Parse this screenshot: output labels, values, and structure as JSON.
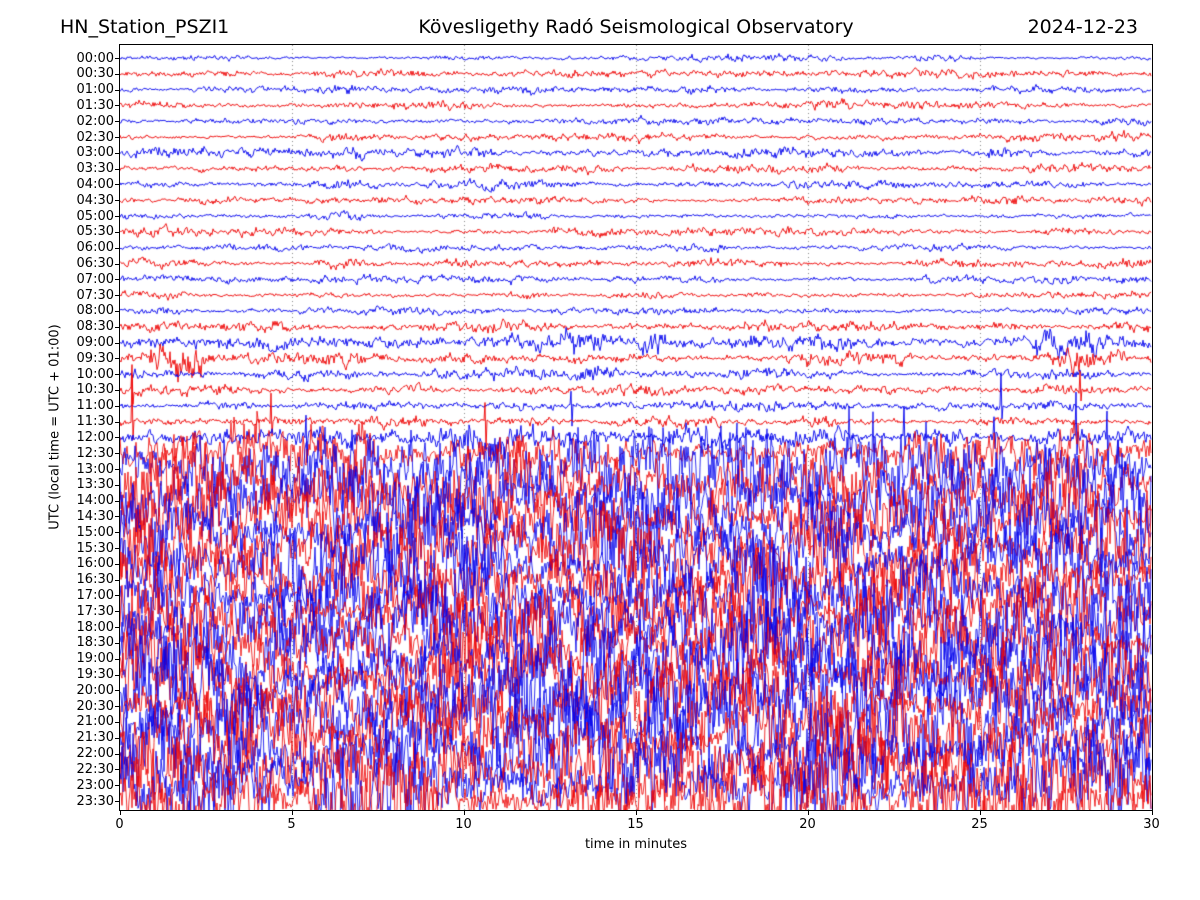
{
  "chart_data": {
    "type": "line",
    "variant": "helicorder-day-plot",
    "title_left": "HN_Station_PSZI1",
    "title_center": "Kövesligethy Radó Seismological Observatory",
    "title_right": "2024-12-23",
    "xlabel": "time in minutes",
    "ylabel": "UTC (local time = UTC + 01:00)",
    "xlim": [
      0,
      30
    ],
    "xticks": [
      0,
      5,
      10,
      15,
      20,
      25,
      30
    ],
    "minutes_per_row": 30,
    "grid": {
      "vertical_minutes": [
        5,
        10,
        15,
        20,
        25
      ],
      "style": "dotted",
      "color": "#888888"
    },
    "colors": {
      "blue": "#0000ee",
      "red": "#ee0000"
    },
    "background": "#ffffff",
    "legend": "none",
    "rows": [
      {
        "t": "00:00",
        "c": "blue",
        "amp": 2.2,
        "seed": 11
      },
      {
        "t": "00:30",
        "c": "red",
        "amp": 2.5,
        "seed": 28
      },
      {
        "t": "01:00",
        "c": "blue",
        "amp": 2.7,
        "seed": 45
      },
      {
        "t": "01:30",
        "c": "red",
        "amp": 2.7,
        "seed": 62
      },
      {
        "t": "02:00",
        "c": "blue",
        "amp": 2.4,
        "seed": 79
      },
      {
        "t": "02:30",
        "c": "red",
        "amp": 3.0,
        "seed": 96
      },
      {
        "t": "03:00",
        "c": "blue",
        "amp": 3.8,
        "seed": 113
      },
      {
        "t": "03:30",
        "c": "red",
        "amp": 3.0,
        "seed": 130
      },
      {
        "t": "04:00",
        "c": "blue",
        "amp": 3.2,
        "seed": 147
      },
      {
        "t": "04:30",
        "c": "red",
        "amp": 2.7,
        "seed": 164
      },
      {
        "t": "05:00",
        "c": "blue",
        "amp": 2.7,
        "seed": 181
      },
      {
        "t": "05:30",
        "c": "red",
        "amp": 2.9,
        "seed": 198
      },
      {
        "t": "06:00",
        "c": "blue",
        "amp": 2.5,
        "seed": 215
      },
      {
        "t": "06:30",
        "c": "red",
        "amp": 3.1,
        "seed": 232
      },
      {
        "t": "07:00",
        "c": "blue",
        "amp": 2.9,
        "seed": 249
      },
      {
        "t": "07:30",
        "c": "red",
        "amp": 2.7,
        "seed": 266
      },
      {
        "t": "08:00",
        "c": "blue",
        "amp": 2.5,
        "seed": 283
      },
      {
        "t": "08:30",
        "c": "red",
        "amp": 3.6,
        "seed": 300
      },
      {
        "t": "09:00",
        "c": "blue",
        "amp": 4.8,
        "seed": 317,
        "b": [
          [
            12.8,
            14.2,
            2.4
          ],
          [
            15.2,
            15.8,
            2.0
          ],
          [
            26.5,
            28.5,
            1.8
          ]
        ]
      },
      {
        "t": "09:30",
        "c": "red",
        "amp": 4.8,
        "seed": 334,
        "b": [
          [
            0.9,
            2.6,
            3.2
          ],
          [
            27.3,
            29.3,
            2.4
          ]
        ]
      },
      {
        "t": "10:00",
        "c": "blue",
        "amp": 4.4,
        "seed": 351
      },
      {
        "t": "10:30",
        "c": "red",
        "amp": 3.6,
        "seed": 368,
        "s": [
          [
            0.35,
            24,
            10
          ],
          [
            27.9,
            18,
            8
          ]
        ]
      },
      {
        "t": "11:00",
        "c": "blue",
        "amp": 3.5,
        "seed": 385,
        "s": [
          [
            13.1,
            14,
            20
          ],
          [
            25.6,
            34,
            12
          ]
        ]
      },
      {
        "t": "11:30",
        "c": "red",
        "amp": 3.5,
        "seed": 402,
        "s": [
          [
            0.35,
            46,
            20
          ],
          [
            4.4,
            26,
            12
          ],
          [
            10.6,
            20,
            30
          ]
        ]
      },
      {
        "t": "12:00",
        "c": "blue",
        "amp": 7.0,
        "seed": 419,
        "b": [
          [
            9.8,
            11.2,
            1.8
          ]
        ],
        "s": [
          [
            5.4,
            16,
            26
          ],
          [
            22.8,
            30,
            14
          ],
          [
            25.4,
            22,
            12
          ],
          [
            27.8,
            44,
            20
          ],
          [
            28.7,
            26,
            40
          ]
        ]
      },
      {
        "t": "12:30",
        "c": "red",
        "amp": 20,
        "seed": 436
      },
      {
        "t": "13:00",
        "c": "blue",
        "amp": 26,
        "seed": 453
      },
      {
        "t": "13:30",
        "c": "red",
        "amp": 28,
        "seed": 470
      },
      {
        "t": "14:00",
        "c": "blue",
        "amp": 30,
        "seed": 487
      },
      {
        "t": "14:30",
        "c": "red",
        "amp": 24,
        "seed": 504
      },
      {
        "t": "15:00",
        "c": "blue",
        "amp": 30,
        "seed": 521
      },
      {
        "t": "15:30",
        "c": "red",
        "amp": 27,
        "seed": 538
      },
      {
        "t": "16:00",
        "c": "blue",
        "amp": 30,
        "seed": 555
      },
      {
        "t": "16:30",
        "c": "red",
        "amp": 28,
        "seed": 572
      },
      {
        "t": "17:00",
        "c": "blue",
        "amp": 31,
        "seed": 589
      },
      {
        "t": "17:30",
        "c": "red",
        "amp": 29,
        "seed": 606
      },
      {
        "t": "18:00",
        "c": "blue",
        "amp": 32,
        "seed": 623
      },
      {
        "t": "18:30",
        "c": "red",
        "amp": 30,
        "seed": 640
      },
      {
        "t": "19:00",
        "c": "blue",
        "amp": 32,
        "seed": 657
      },
      {
        "t": "19:30",
        "c": "red",
        "amp": 29,
        "seed": 674
      },
      {
        "t": "20:00",
        "c": "blue",
        "amp": 32,
        "seed": 691
      },
      {
        "t": "20:30",
        "c": "red",
        "amp": 30,
        "seed": 708
      },
      {
        "t": "21:00",
        "c": "blue",
        "amp": 33,
        "seed": 725
      },
      {
        "t": "21:30",
        "c": "red",
        "amp": 30,
        "seed": 742
      },
      {
        "t": "22:00",
        "c": "blue",
        "amp": 33,
        "seed": 759
      },
      {
        "t": "22:30",
        "c": "red",
        "amp": 31,
        "seed": 776
      },
      {
        "t": "23:00",
        "c": "blue",
        "amp": 33,
        "seed": 793
      },
      {
        "t": "23:30",
        "c": "red",
        "amp": 31,
        "seed": 810
      }
    ]
  }
}
